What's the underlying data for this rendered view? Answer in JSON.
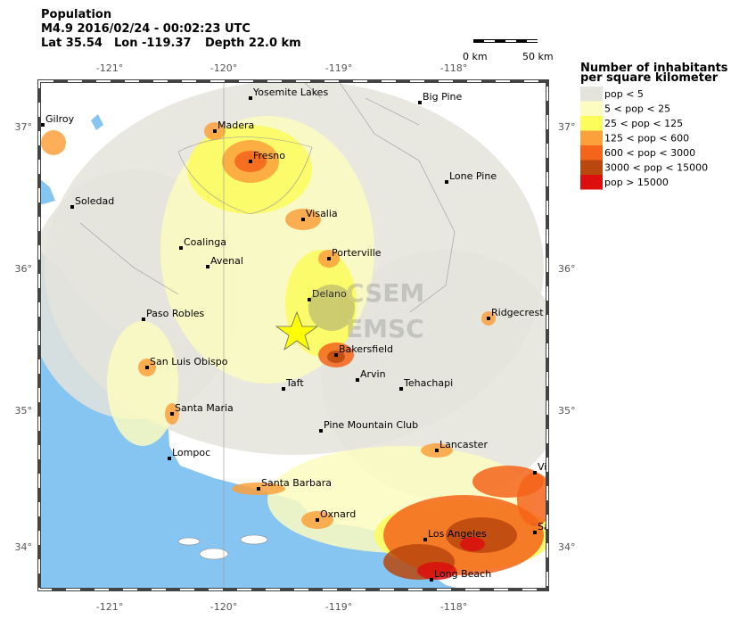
{
  "header": {
    "title": "Population",
    "event": "M4.9  2016/02/24 - 00:02:23 UTC",
    "lat": "Lat 35.54",
    "lon": "Lon -119.37",
    "depth": "Depth  22.0 km"
  },
  "scale_bar": {
    "start": "0 km",
    "end": "50 km"
  },
  "axes": {
    "lon_ticks": [
      "-121°",
      "-120°",
      "-119°",
      "-118°"
    ],
    "lat_ticks": [
      "37°",
      "36°",
      "35°",
      "34°"
    ]
  },
  "legend": {
    "title": [
      "Number of inhabitants",
      "per square kilometer"
    ],
    "items": [
      {
        "label": "pop < 5",
        "color": "#e4e4dc"
      },
      {
        "label": "5 < pop < 25",
        "color": "#fcfcc0"
      },
      {
        "label": "25 < pop < 125",
        "color": "#fcfc5a"
      },
      {
        "label": "125 < pop < 600",
        "color": "#fca03c"
      },
      {
        "label": "600 < pop < 3000",
        "color": "#f4641a"
      },
      {
        "label": "3000 < pop < 15000",
        "color": "#b8480e"
      },
      {
        "label": "pop > 15000",
        "color": "#dc0e0e"
      }
    ]
  },
  "cities": [
    "Yosemite Lakes",
    "Big Pine",
    "Gilroy",
    "Madera",
    "Fresno",
    "Lone Pine",
    "Soledad",
    "Visalia",
    "Coalinga",
    "Porterville",
    "Avenal",
    "Delano",
    "Paso Robles",
    "Ridgecrest",
    "Bakersfield",
    "San Luis Obispo",
    "Arvin",
    "Taft",
    "Tehachapi",
    "Santa Maria",
    "Pine Mountain Club",
    "Lancaster",
    "Lompoc",
    "Santa Barbara",
    "Oxnard",
    "Los Angeles",
    "Long Beach",
    "Vi",
    "Sa"
  ],
  "watermark": [
    "CSEM",
    "EMSC"
  ]
}
